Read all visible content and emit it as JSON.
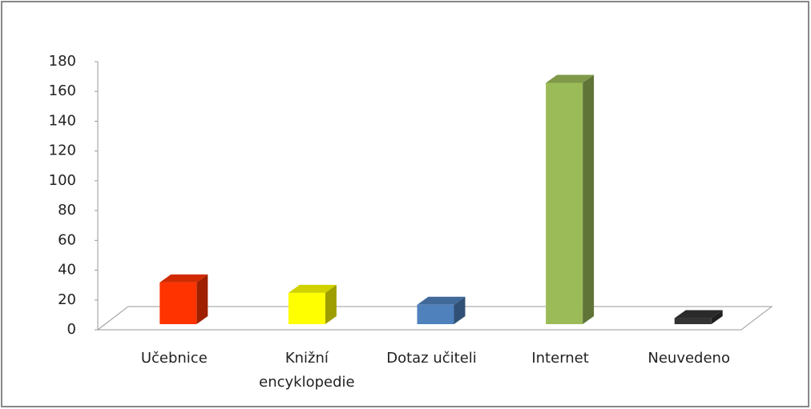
{
  "chart_data": {
    "type": "bar3d",
    "categories": [
      "Učebnice",
      "Knižní encyklopedie",
      "Dotaz učiteli",
      "Internet",
      "Neuvedeno"
    ],
    "values": [
      28,
      21,
      13,
      162,
      4
    ],
    "colors": [
      "#ff3300",
      "#ffff00",
      "#4f81bd",
      "#9bbb59",
      "#333333"
    ],
    "ylim": [
      0,
      180
    ],
    "yticks": [
      0,
      20,
      40,
      60,
      80,
      100,
      120,
      140,
      160,
      180
    ],
    "grid": false
  }
}
